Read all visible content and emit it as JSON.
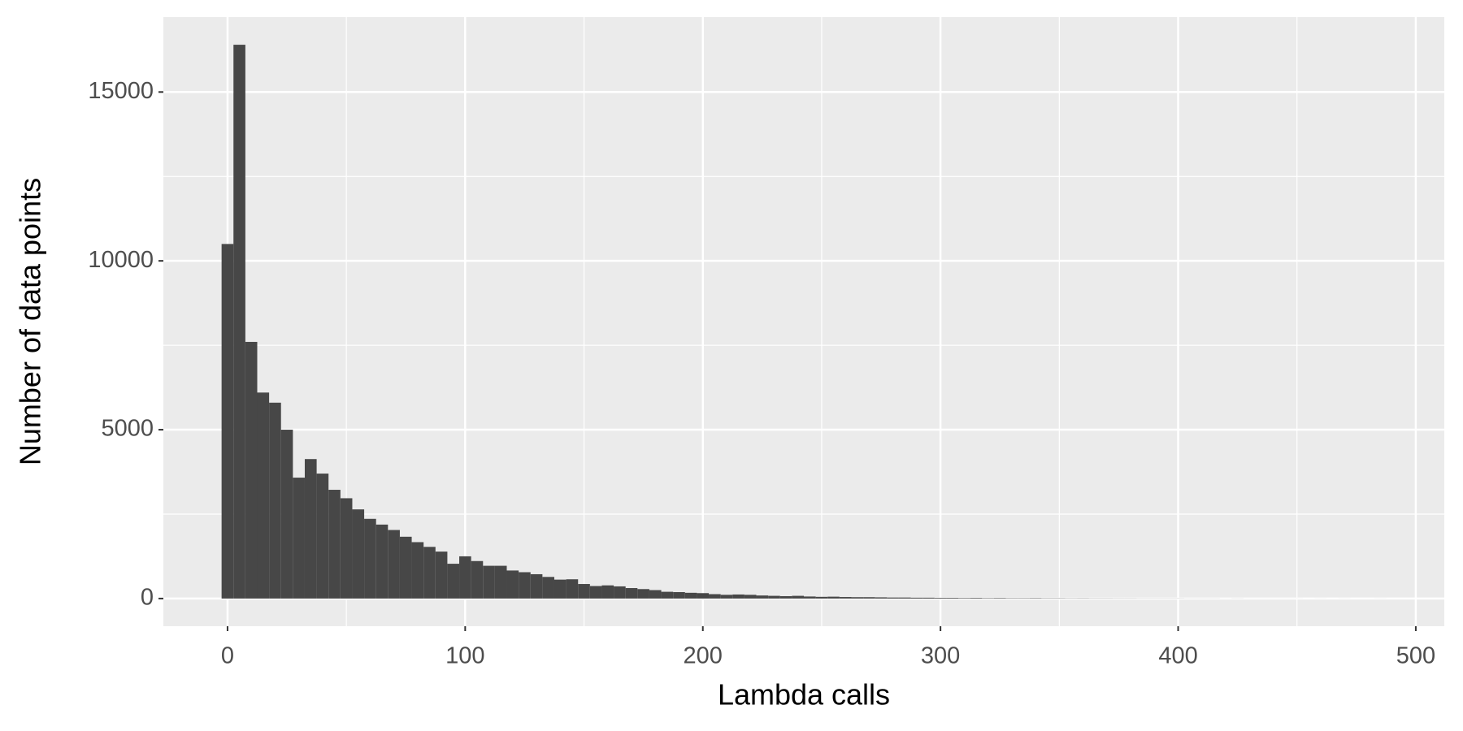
{
  "chart_data": {
    "type": "histogram",
    "x_label": "Lambda calls",
    "y_label": "Number of data points",
    "bins": [
      -2.5,
      2.5,
      7.5,
      12.5,
      17.5,
      22.5,
      27.5,
      32.5,
      37.5,
      42.5,
      47.5,
      52.5,
      57.5,
      62.5,
      67.5,
      72.5,
      77.5,
      82.5,
      87.5,
      92.5,
      97.5,
      102.5,
      107.5,
      112.5,
      117.5,
      122.5,
      127.5,
      132.5,
      137.5,
      142.5,
      147.5,
      152.5,
      157.5,
      162.5,
      167.5,
      172.5,
      177.5,
      182.5,
      187.5,
      192.5,
      197.5,
      202.5,
      207.5,
      212.5,
      217.5,
      222.5,
      227.5,
      232.5,
      237.5,
      242.5,
      247.5,
      252.5,
      257.5,
      262.5,
      267.5,
      272.5,
      277.5,
      282.5,
      287.5,
      292.5,
      297.5,
      302.5,
      307.5,
      312.5,
      317.5,
      322.5,
      327.5,
      332.5,
      337.5,
      342.5,
      347.5,
      352.5,
      357.5,
      362.5,
      367.5,
      372.5,
      377.5,
      382.5,
      387.5,
      392.5,
      397.5,
      402.5,
      407.5,
      412.5,
      417.5,
      422.5,
      427.5,
      432.5,
      437.5,
      442.5,
      447.5,
      452.5,
      457.5,
      462.5,
      467.5,
      472.5,
      477.5,
      482.5,
      487.5
    ],
    "values": [
      10500,
      16400,
      7600,
      6100,
      5800,
      5000,
      3580,
      4130,
      3700,
      3220,
      2970,
      2640,
      2360,
      2190,
      2030,
      1830,
      1670,
      1530,
      1390,
      1030,
      1250,
      1110,
      970,
      970,
      830,
      780,
      720,
      640,
      560,
      570,
      430,
      370,
      390,
      360,
      310,
      280,
      250,
      200,
      190,
      170,
      160,
      130,
      110,
      120,
      110,
      90,
      80,
      70,
      80,
      60,
      50,
      55,
      45,
      40,
      40,
      35,
      30,
      30,
      25,
      25,
      20,
      20,
      15,
      18,
      12,
      15,
      10,
      10,
      12,
      8,
      8,
      6,
      7,
      5,
      5,
      4,
      4,
      3,
      3,
      3,
      3,
      2,
      2,
      2,
      1,
      2,
      1,
      1,
      1,
      1,
      1,
      0,
      1,
      0,
      1,
      0,
      0,
      1
    ],
    "color": "#474747",
    "xlim": [
      -27,
      512
    ],
    "ylim": [
      -820,
      17220
    ],
    "xticks": [
      0,
      100,
      200,
      300,
      400,
      500
    ],
    "yticks": [
      0,
      5000,
      10000,
      15000
    ],
    "xminor": [
      50,
      150,
      250,
      350,
      450
    ],
    "yminor": [
      2500,
      7500,
      12500
    ],
    "grid": true
  }
}
